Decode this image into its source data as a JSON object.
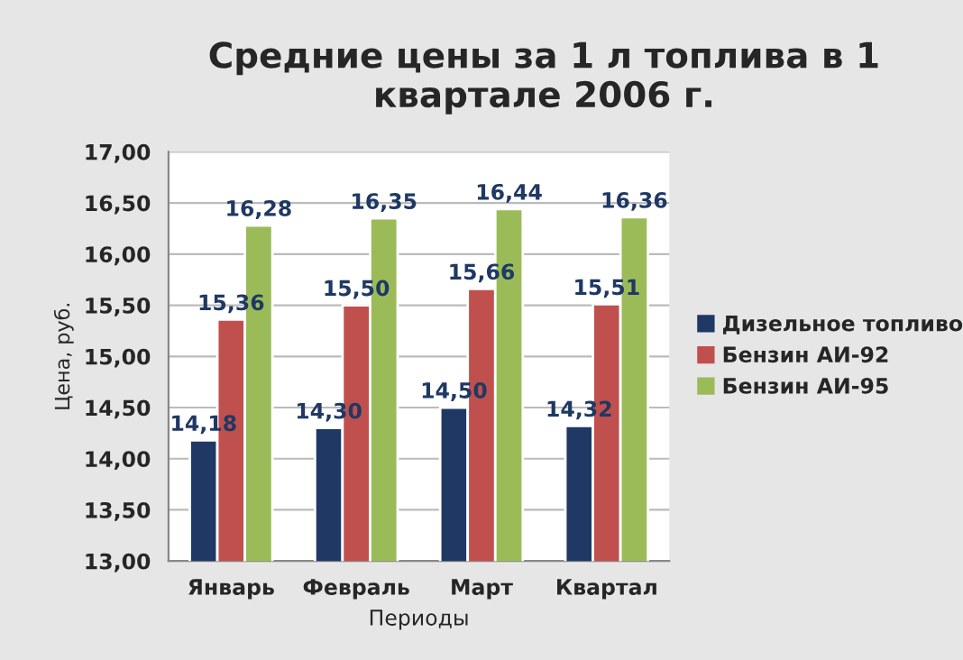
{
  "chart_data": {
    "type": "bar",
    "title": "Средние цены за 1 л топлива в 1 квартале 2006 г.",
    "xlabel": "Периоды",
    "ylabel": "Цена, руб.",
    "categories": [
      "Январь",
      "Февраль",
      "Март",
      "Квартал"
    ],
    "series": [
      {
        "name": "Дизельное топливо",
        "color": "#1f3864",
        "values": [
          14.18,
          14.3,
          14.5,
          14.32
        ],
        "value_labels": [
          "14,18",
          "14,30",
          "14,50",
          "14,32"
        ]
      },
      {
        "name": "Бензин АИ-92",
        "color": "#c0504d",
        "values": [
          15.36,
          15.5,
          15.66,
          15.51
        ],
        "value_labels": [
          "15,36",
          "15,50",
          "15,66",
          "15,51"
        ]
      },
      {
        "name": "Бензин АИ-95",
        "color": "#9bbb59",
        "values": [
          16.28,
          16.35,
          16.44,
          16.36
        ],
        "value_labels": [
          "16,28",
          "16,35",
          "16,44",
          "16,36"
        ]
      }
    ],
    "ylim": [
      13,
      17
    ],
    "yticks": [
      {
        "value": 13,
        "label": "13,00"
      },
      {
        "value": 13.5,
        "label": "13,50"
      },
      {
        "value": 14,
        "label": "14,00"
      },
      {
        "value": 14.5,
        "label": "14,50"
      },
      {
        "value": 15,
        "label": "15,00"
      },
      {
        "value": 15.5,
        "label": "15,50"
      },
      {
        "value": 16,
        "label": "16,00"
      },
      {
        "value": 16.5,
        "label": "16,50"
      },
      {
        "value": 17,
        "label": "17,00"
      }
    ],
    "grid": "y",
    "legend": "right"
  }
}
